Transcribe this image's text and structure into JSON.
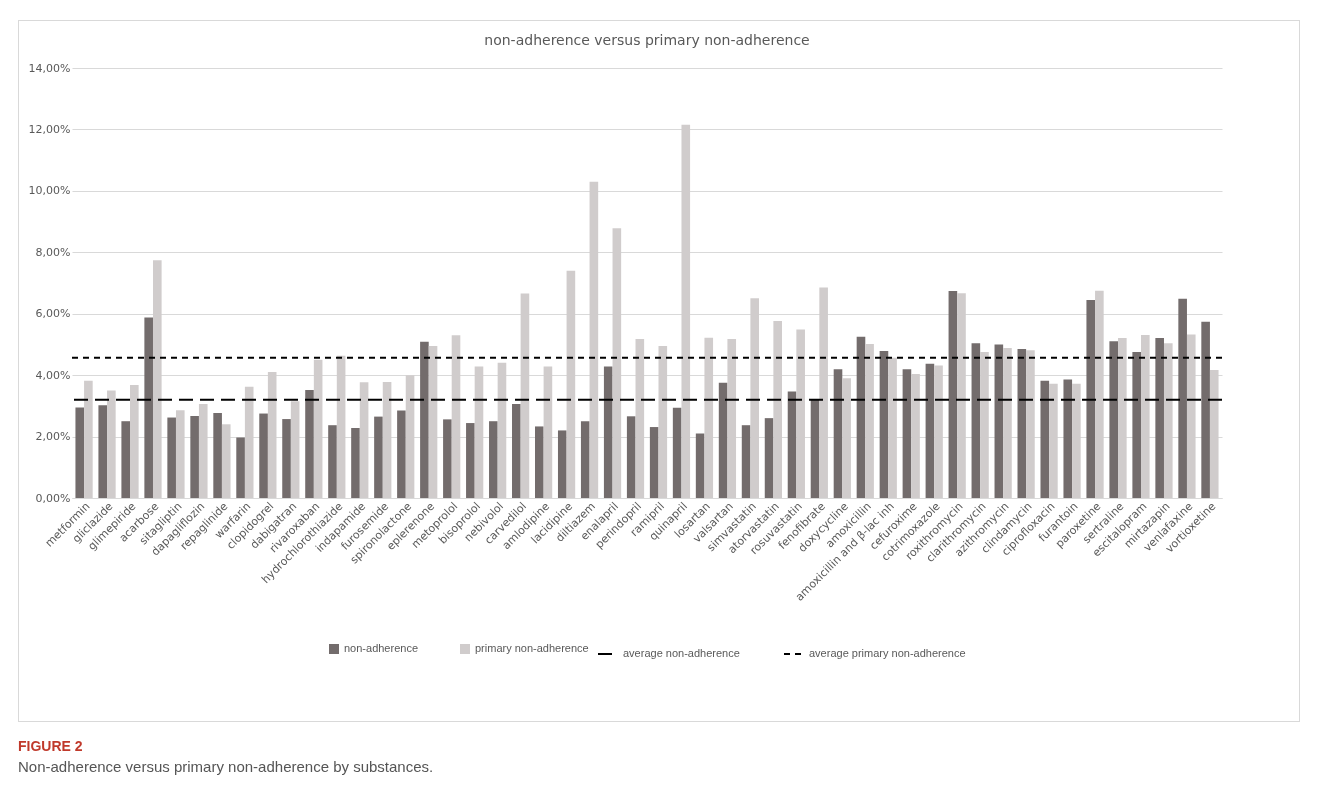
{
  "chart_data": {
    "type": "bar",
    "title": "non-adherence versus primary non-adherence",
    "categories": [
      "metformin",
      "gliclazide",
      "glimepiride",
      "acarbose",
      "sitagliptin",
      "dapagliflozin",
      "repaglinide",
      "warfarin",
      "clopidogrel",
      "dabigatran",
      "rivaroxaban",
      "hydrochlorothiazide",
      "indapamide",
      "furosemide",
      "spironolactone",
      "eplerenone",
      "metoprolol",
      "bisoprolol",
      "nebivolol",
      "carvedilol",
      "amlodipine",
      "lacidipine",
      "diltiazem",
      "enalapril",
      "perindopril",
      "ramipril",
      "quinapril",
      "losartan",
      "valsartan",
      "simvastatin",
      "atorvastatin",
      "rosuvastatin",
      "fenofibrate",
      "doxycycline",
      "amoxicillin",
      "amoxicillin and β-lac inh",
      "cefuroxime",
      "cotrimoxazole",
      "roxithromycin",
      "clarithromycin",
      "azithromycin",
      "clindamycin",
      "ciprofloxacin",
      "furantoin",
      "paroxetine",
      "sertraline",
      "escitalopram",
      "mirtazapin",
      "venlafaxine",
      "vortioxetine"
    ],
    "series": [
      {
        "name": "non-adherence",
        "color": "#736c6c",
        "values": [
          2.95,
          3.02,
          2.5,
          5.88,
          2.62,
          2.67,
          2.77,
          1.97,
          2.75,
          2.57,
          3.52,
          2.37,
          2.28,
          2.65,
          2.85,
          5.09,
          2.56,
          2.44,
          2.5,
          3.06,
          2.33,
          2.2,
          2.5,
          4.28,
          2.66,
          2.31,
          2.94,
          2.1,
          3.75,
          2.37,
          2.6,
          3.47,
          3.22,
          4.19,
          5.25,
          4.79,
          4.19,
          4.37,
          6.74,
          5.04,
          5.0,
          4.85,
          3.82,
          3.86,
          6.45,
          5.1,
          4.75,
          5.21,
          6.49,
          5.74
        ]
      },
      {
        "name": "primary non-adherence",
        "color": "#d0cccc",
        "values": [
          3.82,
          3.5,
          3.68,
          7.74,
          2.86,
          3.06,
          2.4,
          3.62,
          4.1,
          3.15,
          4.5,
          4.63,
          3.77,
          3.78,
          4.0,
          4.95,
          5.3,
          4.28,
          4.4,
          6.66,
          4.28,
          7.4,
          10.3,
          8.78,
          5.18,
          4.95,
          12.15,
          5.22,
          5.18,
          6.5,
          5.76,
          5.49,
          6.85,
          3.9,
          5.01,
          4.57,
          4.04,
          4.31,
          6.67,
          4.75,
          4.88,
          4.81,
          3.72,
          3.72,
          6.75,
          5.21,
          5.31,
          5.04,
          5.32,
          4.17
        ]
      }
    ],
    "ylim": [
      0,
      14
    ],
    "yticks": [
      {
        "value": 0,
        "label": "0,00%"
      },
      {
        "value": 2,
        "label": "2,00%"
      },
      {
        "value": 4,
        "label": "4,00%"
      },
      {
        "value": 6,
        "label": "6,00%"
      },
      {
        "value": 8,
        "label": "8,00%"
      },
      {
        "value": 10,
        "label": "10,00%"
      },
      {
        "value": 12,
        "label": "12,00%"
      },
      {
        "value": 14,
        "label": "14,00%"
      }
    ],
    "grid": "y",
    "legend": "bottom",
    "ref_lines": [
      {
        "axis": "y",
        "value": 3.2,
        "label": "average non-adherence",
        "color": "#000000",
        "line_style": "dashed"
      },
      {
        "axis": "y",
        "value": 4.57,
        "label": "average primary non-adherence",
        "color": "#000000",
        "line_style": "dashed"
      }
    ],
    "annotations": [
      "FIGURE 2",
      "Non-adherence versus primary non-adherence by substances."
    ]
  }
}
